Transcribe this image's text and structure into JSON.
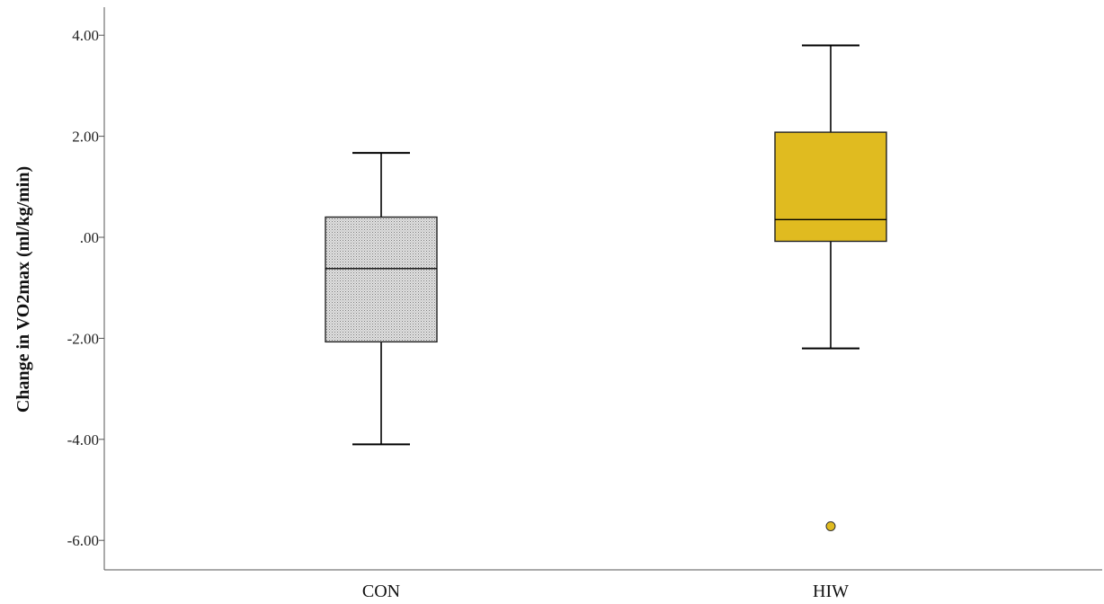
{
  "chart_data": {
    "type": "boxplot",
    "title": "",
    "xlabel": "",
    "ylabel": "Change in VO2max (ml/kg/min)",
    "ylim": [
      -6.5,
      4.5
    ],
    "yticks": [
      -6,
      -4,
      -2,
      0,
      2,
      4
    ],
    "ytick_labels": [
      "-6.00",
      "-4.00",
      "-2.00",
      ".00",
      "2.00",
      "4.00"
    ],
    "categories": [
      "CON",
      "HIW"
    ],
    "grid": false,
    "series": [
      {
        "category": "CON",
        "whisker_low": -4.1,
        "q1": -2.07,
        "median": -0.62,
        "q3": 0.4,
        "whisker_high": 1.67,
        "outliers": [],
        "fill": "#d9d9d9",
        "pattern": "dotted"
      },
      {
        "category": "HIW",
        "whisker_low": -2.2,
        "q1": -0.08,
        "median": 0.35,
        "q3": 2.08,
        "whisker_high": 3.8,
        "outliers": [
          -5.72
        ],
        "fill": "#e0bb20",
        "pattern": "solid"
      }
    ]
  }
}
